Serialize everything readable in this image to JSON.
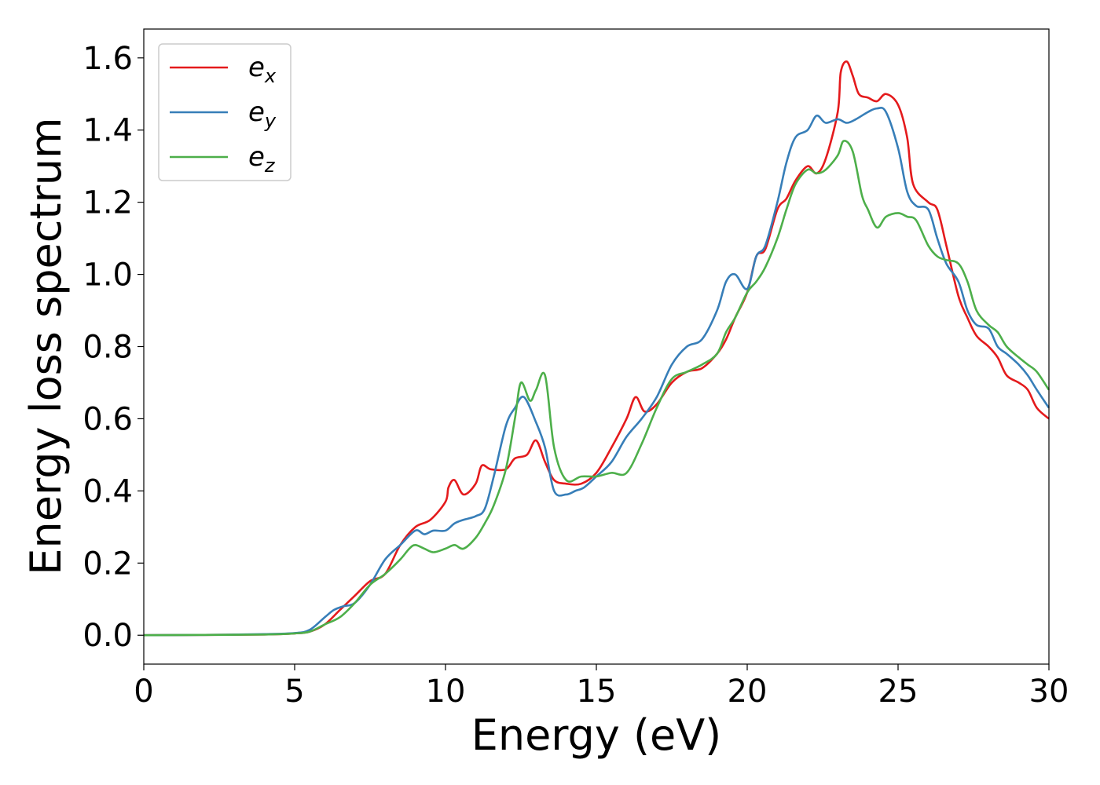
{
  "chart_data": {
    "type": "line",
    "xlabel": "Energy (eV)",
    "ylabel": "Energy loss spectrum",
    "xlim": [
      0,
      30
    ],
    "ylim": [
      -0.08,
      1.68
    ],
    "xticks": [
      0,
      5,
      10,
      15,
      20,
      25,
      30
    ],
    "yticks": [
      0.0,
      0.2,
      0.4,
      0.6,
      0.8,
      1.0,
      1.2,
      1.4,
      1.6
    ],
    "xtick_labels": [
      "0",
      "5",
      "10",
      "15",
      "20",
      "25",
      "30"
    ],
    "ytick_labels": [
      "0.0",
      "0.2",
      "0.4",
      "0.6",
      "0.8",
      "1.0",
      "1.2",
      "1.4",
      "1.6"
    ],
    "grid": false,
    "legend_position": "top-left",
    "series": [
      {
        "name": "e",
        "subscript": "x",
        "color": "#e41a1c",
        "x": [
          0,
          2,
          4,
          5,
          5.5,
          6,
          6.5,
          7,
          7.5,
          8,
          8.5,
          9,
          9.5,
          10,
          10.1,
          10.3,
          10.6,
          11,
          11.2,
          11.5,
          12,
          12.3,
          12.7,
          13,
          13.3,
          13.6,
          14,
          14.5,
          15,
          15.5,
          16,
          16.3,
          16.6,
          17,
          17.5,
          18,
          18.5,
          19,
          19.3,
          19.6,
          20,
          20.3,
          20.6,
          21,
          21.3,
          21.6,
          22,
          22.3,
          22.6,
          23,
          23.1,
          23.3,
          23.5,
          23.7,
          24,
          24.3,
          24.6,
          25,
          25.3,
          25.5,
          26,
          26.3,
          26.6,
          27,
          27.3,
          27.6,
          28,
          28.3,
          28.6,
          29,
          29.3,
          29.6,
          30
        ],
        "y": [
          0,
          0.001,
          0.002,
          0.005,
          0.01,
          0.03,
          0.07,
          0.11,
          0.15,
          0.17,
          0.25,
          0.3,
          0.32,
          0.37,
          0.41,
          0.43,
          0.39,
          0.42,
          0.47,
          0.46,
          0.46,
          0.49,
          0.5,
          0.54,
          0.48,
          0.43,
          0.42,
          0.42,
          0.45,
          0.52,
          0.6,
          0.66,
          0.62,
          0.64,
          0.7,
          0.73,
          0.74,
          0.78,
          0.82,
          0.88,
          0.95,
          1.05,
          1.07,
          1.18,
          1.21,
          1.26,
          1.3,
          1.28,
          1.32,
          1.45,
          1.56,
          1.59,
          1.55,
          1.5,
          1.49,
          1.48,
          1.5,
          1.47,
          1.38,
          1.25,
          1.2,
          1.18,
          1.08,
          0.94,
          0.88,
          0.83,
          0.8,
          0.77,
          0.72,
          0.7,
          0.68,
          0.63,
          0.6
        ]
      },
      {
        "name": "e",
        "subscript": "y",
        "color": "#377eb8",
        "x": [
          0,
          2,
          4,
          5,
          5.5,
          6,
          6.3,
          6.6,
          7,
          7.5,
          8,
          8.5,
          9,
          9.3,
          9.6,
          10,
          10.3,
          10.6,
          11,
          11.3,
          11.6,
          12,
          12.3,
          12.6,
          13,
          13.3,
          13.6,
          14,
          14.3,
          14.6,
          15,
          15.5,
          16,
          16.5,
          17,
          17.5,
          18,
          18.5,
          19,
          19.3,
          19.6,
          20,
          20.3,
          20.6,
          21,
          21.3,
          21.6,
          22,
          22.3,
          22.6,
          23,
          23.3,
          23.6,
          24,
          24.3,
          24.6,
          25,
          25.3,
          25.6,
          26,
          26.3,
          26.6,
          27,
          27.3,
          27.6,
          28,
          28.3,
          28.6,
          29,
          29.3,
          29.6,
          30
        ],
        "y": [
          0,
          0.001,
          0.003,
          0.006,
          0.015,
          0.05,
          0.07,
          0.08,
          0.09,
          0.14,
          0.21,
          0.25,
          0.29,
          0.28,
          0.29,
          0.29,
          0.31,
          0.32,
          0.33,
          0.35,
          0.44,
          0.58,
          0.63,
          0.66,
          0.59,
          0.52,
          0.4,
          0.39,
          0.4,
          0.41,
          0.44,
          0.48,
          0.55,
          0.6,
          0.66,
          0.75,
          0.8,
          0.82,
          0.9,
          0.98,
          1.0,
          0.96,
          1.05,
          1.08,
          1.2,
          1.31,
          1.38,
          1.4,
          1.44,
          1.42,
          1.43,
          1.42,
          1.43,
          1.45,
          1.46,
          1.45,
          1.35,
          1.23,
          1.19,
          1.18,
          1.1,
          1.03,
          0.98,
          0.9,
          0.86,
          0.85,
          0.8,
          0.78,
          0.75,
          0.72,
          0.68,
          0.63
        ]
      },
      {
        "name": "e",
        "subscript": "z",
        "color": "#4daf4a",
        "x": [
          0,
          2,
          4,
          5,
          5.5,
          6,
          6.5,
          7,
          7.5,
          8,
          8.5,
          8.8,
          9,
          9.3,
          9.6,
          10,
          10.3,
          10.6,
          11,
          11.3,
          11.6,
          12,
          12.3,
          12.5,
          12.8,
          13,
          13.3,
          13.6,
          14,
          14.5,
          15,
          15.5,
          16,
          16.5,
          17,
          17.5,
          18,
          18.5,
          19,
          19.3,
          19.6,
          20,
          20.3,
          20.6,
          21,
          21.3,
          21.6,
          22,
          22.3,
          22.6,
          23,
          23.2,
          23.5,
          23.8,
          24,
          24.3,
          24.6,
          25,
          25.3,
          25.6,
          26,
          26.3,
          26.6,
          27,
          27.3,
          27.6,
          28,
          28.3,
          28.6,
          29,
          29.3,
          29.6,
          30
        ],
        "y": [
          0,
          0.001,
          0.002,
          0.005,
          0.01,
          0.03,
          0.05,
          0.09,
          0.14,
          0.17,
          0.21,
          0.24,
          0.25,
          0.24,
          0.23,
          0.24,
          0.25,
          0.24,
          0.27,
          0.31,
          0.36,
          0.46,
          0.6,
          0.7,
          0.65,
          0.68,
          0.72,
          0.52,
          0.43,
          0.44,
          0.44,
          0.45,
          0.45,
          0.53,
          0.63,
          0.71,
          0.73,
          0.75,
          0.78,
          0.84,
          0.88,
          0.95,
          0.98,
          1.02,
          1.1,
          1.18,
          1.25,
          1.29,
          1.28,
          1.29,
          1.33,
          1.37,
          1.34,
          1.22,
          1.18,
          1.13,
          1.16,
          1.17,
          1.16,
          1.15,
          1.08,
          1.05,
          1.04,
          1.03,
          0.98,
          0.9,
          0.86,
          0.84,
          0.8,
          0.77,
          0.75,
          0.73,
          0.68
        ]
      }
    ]
  }
}
